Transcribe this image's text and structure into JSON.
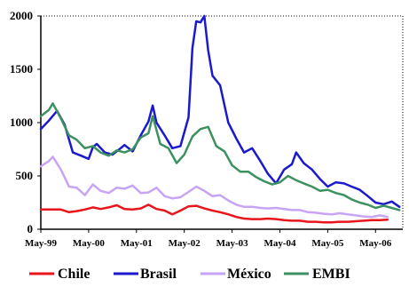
{
  "chart_data": {
    "type": "line",
    "title": "",
    "xlabel": "",
    "ylabel": "",
    "ylim": [
      0,
      2000
    ],
    "yticks": [
      "0",
      "500",
      "1000",
      "1500",
      "2000"
    ],
    "xticks": [
      "May-99",
      "May-00",
      "May-01",
      "May-02",
      "May-03",
      "May-04",
      "May-05",
      "May-06"
    ],
    "grid": false,
    "legend_position": "bottom",
    "series": [
      {
        "name": "Chile",
        "color": "#e8161c",
        "points": [
          [
            1999.33,
            185
          ],
          [
            1999.58,
            185
          ],
          [
            1999.75,
            185
          ],
          [
            1999.92,
            160
          ],
          [
            2000.08,
            170
          ],
          [
            2000.25,
            185
          ],
          [
            2000.42,
            205
          ],
          [
            2000.58,
            190
          ],
          [
            2000.75,
            205
          ],
          [
            2000.92,
            225
          ],
          [
            2001.08,
            190
          ],
          [
            2001.25,
            185
          ],
          [
            2001.42,
            195
          ],
          [
            2001.58,
            230
          ],
          [
            2001.75,
            190
          ],
          [
            2001.92,
            175
          ],
          [
            2002.08,
            140
          ],
          [
            2002.25,
            175
          ],
          [
            2002.42,
            215
          ],
          [
            2002.58,
            220
          ],
          [
            2002.75,
            195
          ],
          [
            2002.92,
            175
          ],
          [
            2003.08,
            160
          ],
          [
            2003.25,
            140
          ],
          [
            2003.42,
            115
          ],
          [
            2003.58,
            100
          ],
          [
            2003.75,
            95
          ],
          [
            2003.92,
            95
          ],
          [
            2004.08,
            100
          ],
          [
            2004.25,
            95
          ],
          [
            2004.42,
            85
          ],
          [
            2004.58,
            80
          ],
          [
            2004.75,
            80
          ],
          [
            2004.92,
            70
          ],
          [
            2005.08,
            70
          ],
          [
            2005.25,
            65
          ],
          [
            2005.42,
            65
          ],
          [
            2005.58,
            70
          ],
          [
            2005.75,
            70
          ],
          [
            2005.92,
            75
          ],
          [
            2006.08,
            80
          ],
          [
            2006.25,
            85
          ],
          [
            2006.42,
            85
          ],
          [
            2006.58,
            90
          ]
        ]
      },
      {
        "name": "Brasil",
        "color": "#1a1acc",
        "points": [
          [
            1999.33,
            940
          ],
          [
            1999.5,
            1020
          ],
          [
            1999.67,
            1110
          ],
          [
            1999.83,
            980
          ],
          [
            2000.0,
            720
          ],
          [
            2000.17,
            690
          ],
          [
            2000.33,
            660
          ],
          [
            2000.42,
            770
          ],
          [
            2000.5,
            800
          ],
          [
            2000.67,
            720
          ],
          [
            2000.83,
            700
          ],
          [
            2001.0,
            760
          ],
          [
            2001.08,
            790
          ],
          [
            2001.25,
            730
          ],
          [
            2001.42,
            880
          ],
          [
            2001.58,
            1010
          ],
          [
            2001.67,
            1160
          ],
          [
            2001.75,
            1000
          ],
          [
            2001.92,
            880
          ],
          [
            2002.08,
            760
          ],
          [
            2002.25,
            780
          ],
          [
            2002.42,
            1050
          ],
          [
            2002.5,
            1700
          ],
          [
            2002.58,
            1950
          ],
          [
            2002.67,
            1940
          ],
          [
            2002.75,
            2000
          ],
          [
            2002.83,
            1680
          ],
          [
            2002.92,
            1440
          ],
          [
            2003.08,
            1350
          ],
          [
            2003.25,
            1000
          ],
          [
            2003.42,
            850
          ],
          [
            2003.58,
            720
          ],
          [
            2003.75,
            760
          ],
          [
            2003.92,
            640
          ],
          [
            2004.08,
            520
          ],
          [
            2004.25,
            430
          ],
          [
            2004.42,
            560
          ],
          [
            2004.58,
            610
          ],
          [
            2004.67,
            720
          ],
          [
            2004.83,
            620
          ],
          [
            2005.0,
            560
          ],
          [
            2005.17,
            470
          ],
          [
            2005.33,
            400
          ],
          [
            2005.5,
            440
          ],
          [
            2005.67,
            430
          ],
          [
            2005.83,
            400
          ],
          [
            2006.0,
            370
          ],
          [
            2006.17,
            310
          ],
          [
            2006.33,
            250
          ],
          [
            2006.5,
            235
          ],
          [
            2006.67,
            260
          ],
          [
            2006.83,
            210
          ]
        ]
      },
      {
        "name": "México",
        "color": "#c8a4f4",
        "points": [
          [
            1999.33,
            590
          ],
          [
            1999.5,
            640
          ],
          [
            1999.58,
            680
          ],
          [
            1999.75,
            560
          ],
          [
            1999.92,
            400
          ],
          [
            2000.08,
            390
          ],
          [
            2000.25,
            320
          ],
          [
            2000.42,
            420
          ],
          [
            2000.58,
            360
          ],
          [
            2000.75,
            340
          ],
          [
            2000.92,
            390
          ],
          [
            2001.08,
            380
          ],
          [
            2001.25,
            410
          ],
          [
            2001.42,
            340
          ],
          [
            2001.58,
            345
          ],
          [
            2001.75,
            390
          ],
          [
            2001.92,
            310
          ],
          [
            2002.08,
            290
          ],
          [
            2002.25,
            300
          ],
          [
            2002.42,
            350
          ],
          [
            2002.58,
            400
          ],
          [
            2002.75,
            360
          ],
          [
            2002.92,
            310
          ],
          [
            2003.08,
            320
          ],
          [
            2003.25,
            270
          ],
          [
            2003.42,
            230
          ],
          [
            2003.58,
            210
          ],
          [
            2003.75,
            210
          ],
          [
            2003.92,
            200
          ],
          [
            2004.08,
            195
          ],
          [
            2004.25,
            200
          ],
          [
            2004.42,
            190
          ],
          [
            2004.58,
            180
          ],
          [
            2004.75,
            180
          ],
          [
            2004.92,
            160
          ],
          [
            2005.08,
            155
          ],
          [
            2005.25,
            145
          ],
          [
            2005.42,
            140
          ],
          [
            2005.58,
            150
          ],
          [
            2005.75,
            140
          ],
          [
            2005.92,
            130
          ],
          [
            2006.08,
            120
          ],
          [
            2006.25,
            115
          ],
          [
            2006.42,
            130
          ],
          [
            2006.58,
            115
          ]
        ]
      },
      {
        "name": "EMBI",
        "color": "#3d9160",
        "points": [
          [
            1999.33,
            1060
          ],
          [
            1999.5,
            1120
          ],
          [
            1999.58,
            1180
          ],
          [
            1999.75,
            1040
          ],
          [
            1999.92,
            880
          ],
          [
            2000.08,
            840
          ],
          [
            2000.25,
            760
          ],
          [
            2000.42,
            780
          ],
          [
            2000.58,
            720
          ],
          [
            2000.75,
            690
          ],
          [
            2000.92,
            740
          ],
          [
            2001.08,
            720
          ],
          [
            2001.25,
            750
          ],
          [
            2001.42,
            860
          ],
          [
            2001.58,
            900
          ],
          [
            2001.67,
            1060
          ],
          [
            2001.83,
            800
          ],
          [
            2002.0,
            760
          ],
          [
            2002.17,
            620
          ],
          [
            2002.33,
            700
          ],
          [
            2002.5,
            870
          ],
          [
            2002.67,
            940
          ],
          [
            2002.83,
            960
          ],
          [
            2003.0,
            780
          ],
          [
            2003.17,
            730
          ],
          [
            2003.33,
            600
          ],
          [
            2003.5,
            540
          ],
          [
            2003.67,
            540
          ],
          [
            2003.83,
            490
          ],
          [
            2004.0,
            450
          ],
          [
            2004.17,
            420
          ],
          [
            2004.33,
            440
          ],
          [
            2004.5,
            500
          ],
          [
            2004.67,
            460
          ],
          [
            2004.83,
            430
          ],
          [
            2005.0,
            400
          ],
          [
            2005.17,
            360
          ],
          [
            2005.33,
            370
          ],
          [
            2005.5,
            340
          ],
          [
            2005.67,
            320
          ],
          [
            2005.83,
            280
          ],
          [
            2006.0,
            250
          ],
          [
            2006.17,
            230
          ],
          [
            2006.33,
            200
          ],
          [
            2006.5,
            220
          ],
          [
            2006.67,
            200
          ],
          [
            2006.83,
            180
          ]
        ]
      }
    ]
  }
}
